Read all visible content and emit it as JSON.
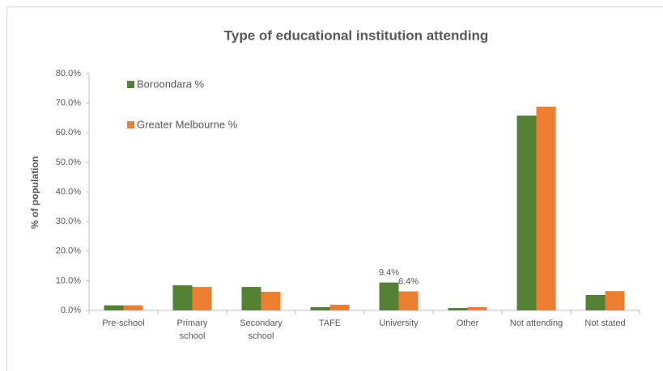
{
  "chart_data": {
    "type": "bar",
    "title": "Type of educational institution attending",
    "y_label": "% of population",
    "categories": [
      "Pre-school",
      "Primary school",
      "Secondary school",
      "TAFE",
      "University",
      "Other",
      "Not attending",
      "Not stated"
    ],
    "series": [
      {
        "name": "Boroondara %",
        "color": "#548235",
        "values": [
          1.7,
          8.5,
          7.9,
          1.1,
          9.4,
          0.8,
          65.8,
          5.2
        ],
        "value_labels": [
          null,
          null,
          null,
          null,
          "9.4%",
          null,
          null,
          null
        ]
      },
      {
        "name": "Greater Melbourne %",
        "color": "#ed7d31",
        "values": [
          1.7,
          7.9,
          6.3,
          1.9,
          6.4,
          1.1,
          68.8,
          6.5
        ],
        "value_labels": [
          null,
          null,
          null,
          null,
          "6.4%",
          null,
          null,
          null
        ]
      }
    ],
    "ylim": [
      0,
      80
    ],
    "yticks": [
      {
        "value": 0,
        "label": "0.0%"
      },
      {
        "value": 10,
        "label": "10.0%"
      },
      {
        "value": 20,
        "label": "20.0%"
      },
      {
        "value": 30,
        "label": "30.0%"
      },
      {
        "value": 40,
        "label": "40.0%"
      },
      {
        "value": 50,
        "label": "50.0%"
      },
      {
        "value": 60,
        "label": "60.0%"
      },
      {
        "value": 70,
        "label": "70.0%"
      },
      {
        "value": 80,
        "label": "80.0%"
      }
    ],
    "grid": false,
    "legend": "top-left"
  }
}
